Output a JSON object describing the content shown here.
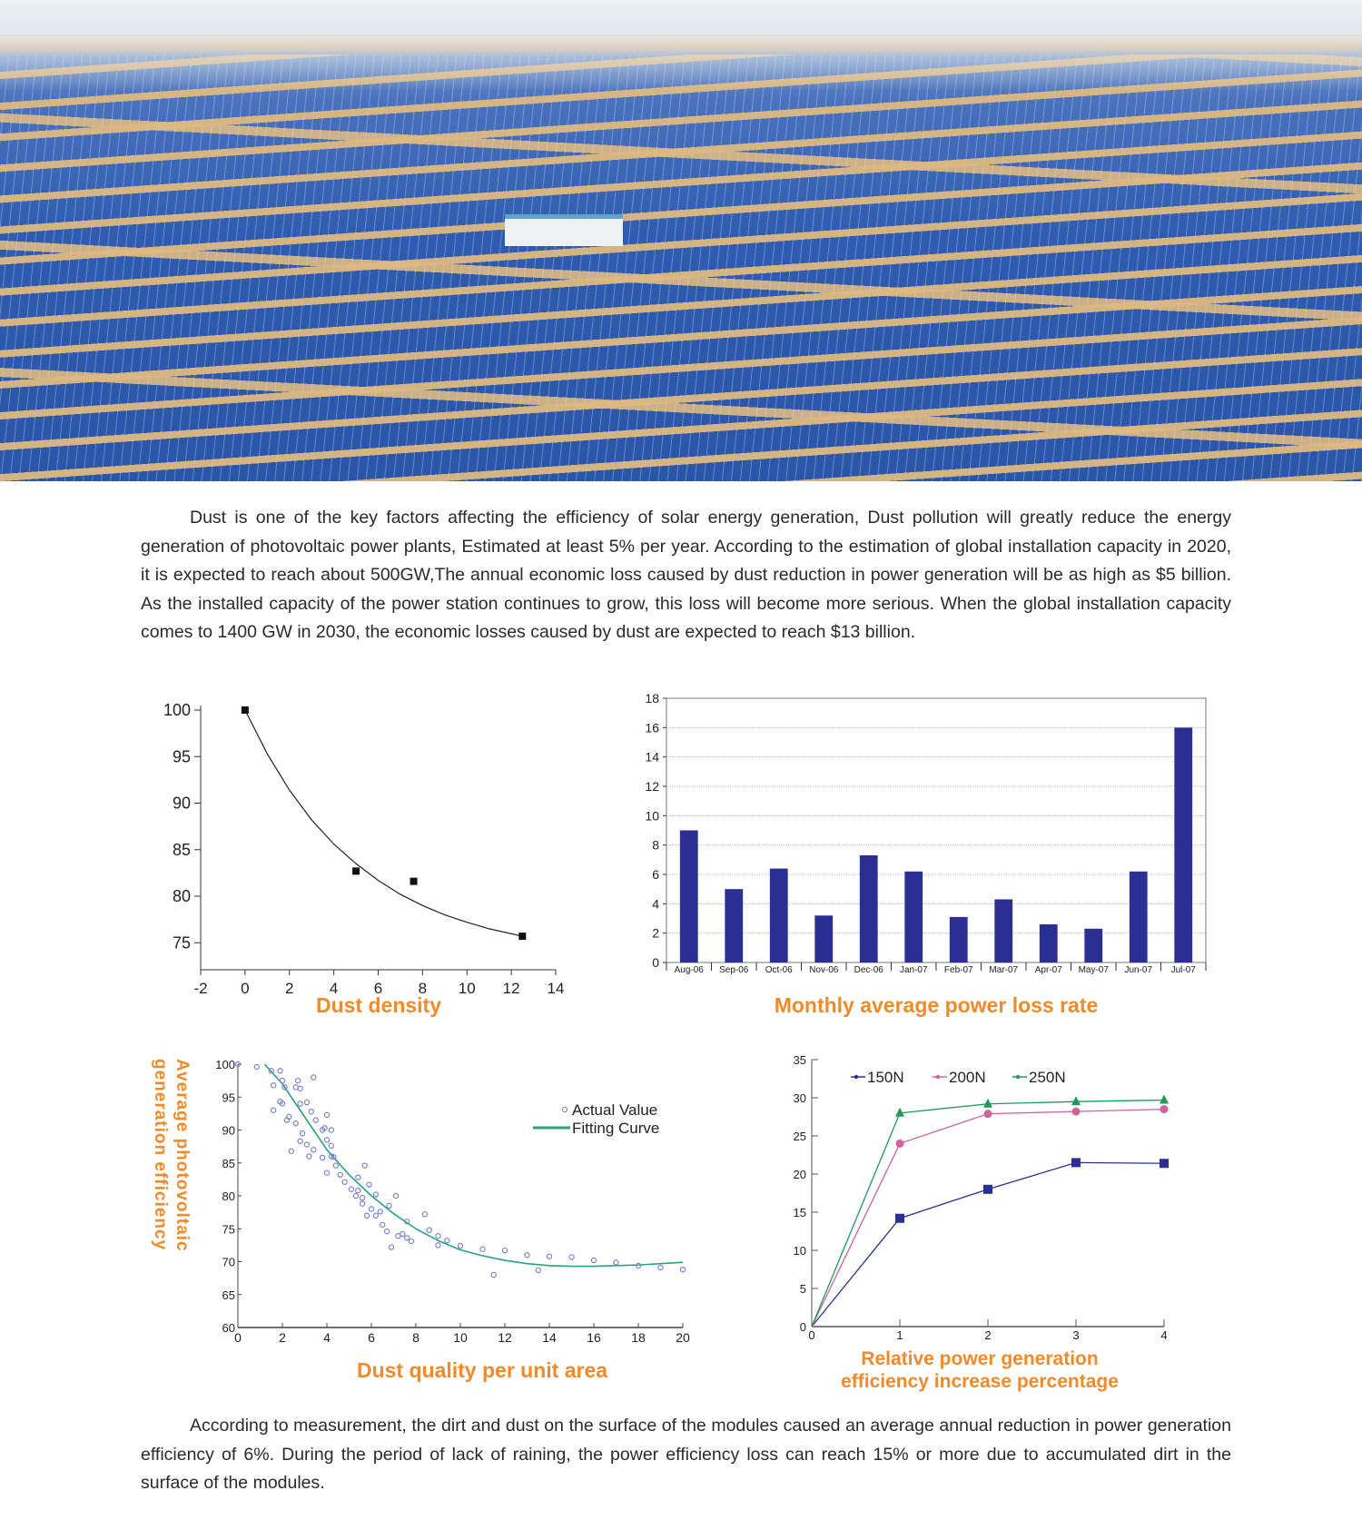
{
  "photo": {
    "alt_subject": "solar-farm-photo"
  },
  "intro_text": "Dust is one of the key factors affecting the efficiency of solar energy generation, Dust pollution will greatly reduce the energy generation of photovoltaic power plants, Estimated at least 5% per year. According to the estimation of global installation capacity in 2020, it is expected to reach about 500GW,The annual economic loss caused by dust reduction in power generation will be as high as $5 billion. As the installed capacity of the power station continues to grow, this loss will become more serious. When the global installation capacity comes to 1400 GW in 2030, the economic losses caused by dust are expected to reach $13 billion.",
  "closing_text": "According to measurement, the dirt and dust on the surface of the modules caused an average annual reduction in power generation efficiency of 6%. During the period of lack of raining, the power efficiency loss can reach 15% or more due to accumulated dirt in the surface of the modules.",
  "colors": {
    "title_orange": "#f08a2a",
    "bar_blue": "#2b2f93",
    "fit_green": "#2aa37a",
    "scatter_blue": "#7b83d6",
    "s150": "#2b2f93",
    "s200": "#d0649a",
    "s250": "#1f9a5a"
  },
  "chart_data": [
    {
      "type": "scatter",
      "title": "Dust density",
      "xlim": [
        -2,
        14
      ],
      "ylim": [
        72.1,
        100
      ],
      "xticks": [
        "-2",
        "0",
        "2",
        "4",
        "6",
        "8",
        "10",
        "12",
        "14"
      ],
      "yticks": [
        "75",
        "80",
        "85",
        "90",
        "95",
        "100"
      ],
      "points": [
        [
          0,
          100
        ],
        [
          5,
          82.7
        ],
        [
          7.6,
          81.6
        ],
        [
          12.5,
          75.7
        ]
      ],
      "fit": [
        [
          0,
          100
        ],
        [
          1,
          95.3
        ],
        [
          2,
          91.4
        ],
        [
          3,
          88.2
        ],
        [
          4,
          85.6
        ],
        [
          5,
          83.5
        ],
        [
          6,
          81.7
        ],
        [
          7,
          80.2
        ],
        [
          8,
          79.0
        ],
        [
          9,
          78.0
        ],
        [
          10,
          77.2
        ],
        [
          11,
          76.5
        ],
        [
          12.5,
          75.7
        ]
      ],
      "grid": false
    },
    {
      "type": "bar",
      "title": "Monthly average power loss rate",
      "categories": [
        "Aug-06",
        "Sep-06",
        "Oct-06",
        "Nov-06",
        "Dec-06",
        "Jan-07",
        "Feb-07",
        "Mar-07",
        "Apr-07",
        "May-07",
        "Jun-07",
        "Jul-07"
      ],
      "values": [
        9,
        5,
        6.4,
        3.2,
        7.3,
        6.2,
        3.1,
        4.3,
        2.6,
        2.3,
        6.2,
        16
      ],
      "ylim": [
        0,
        18
      ],
      "yticks": [
        "0",
        "2",
        "4",
        "6",
        "8",
        "10",
        "12",
        "14",
        "16",
        "18"
      ],
      "grid": true
    },
    {
      "type": "scatter",
      "title": "Dust quality per unit area",
      "ylabel": [
        "Average photovoltaic",
        "generation efficiency"
      ],
      "xlim": [
        0,
        20
      ],
      "ylim": [
        60,
        100
      ],
      "xticks": [
        "0",
        "2",
        "4",
        "6",
        "8",
        "10",
        "12",
        "14",
        "16",
        "18",
        "20"
      ],
      "yticks": [
        "60",
        "65",
        "70",
        "75",
        "80",
        "85",
        "90",
        "95",
        "100"
      ],
      "legend": {
        "placement": "top-right",
        "entries": [
          "Actual Value",
          "Fitting Curve"
        ]
      },
      "series": [
        {
          "name": "Actual Value",
          "points": [
            [
              0,
              100
            ],
            [
              0.85,
              99.6
            ],
            [
              1.5,
              99
            ],
            [
              1.6,
              96.8
            ],
            [
              1.6,
              93
            ],
            [
              1.9,
              94.3
            ],
            [
              2,
              94
            ],
            [
              1.9,
              99
            ],
            [
              2,
              97.5
            ],
            [
              2.1,
              96.5
            ],
            [
              2.2,
              91.5
            ],
            [
              2.3,
              92
            ],
            [
              2.4,
              86.8
            ],
            [
              2.6,
              96.5
            ],
            [
              2.6,
              91
            ],
            [
              2.7,
              97.5
            ],
            [
              2.8,
              96.3
            ],
            [
              2.8,
              94
            ],
            [
              2.9,
              89.5
            ],
            [
              2.8,
              88.3
            ],
            [
              3.1,
              94.2
            ],
            [
              3.1,
              87.8
            ],
            [
              3.2,
              86
            ],
            [
              3.3,
              92.8
            ],
            [
              3.4,
              98
            ],
            [
              3.4,
              87
            ],
            [
              3.5,
              91.5
            ],
            [
              3.8,
              85.8
            ],
            [
              3.8,
              90
            ],
            [
              3.9,
              90.3
            ],
            [
              4,
              92.3
            ],
            [
              4,
              88.5
            ],
            [
              4,
              83.5
            ],
            [
              4.2,
              90
            ],
            [
              4.2,
              87.6
            ],
            [
              4.2,
              86
            ],
            [
              4.3,
              85.9
            ],
            [
              4.4,
              84.6
            ],
            [
              4.6,
              83.2
            ],
            [
              4.8,
              82.1
            ],
            [
              5.1,
              81
            ],
            [
              5.3,
              80
            ],
            [
              5.4,
              80.8
            ],
            [
              5.4,
              82.8
            ],
            [
              5.6,
              78.8
            ],
            [
              5.6,
              79.7
            ],
            [
              5.7,
              84.6
            ],
            [
              5.8,
              77
            ],
            [
              5.9,
              81.7
            ],
            [
              6,
              78
            ],
            [
              6.2,
              80.2
            ],
            [
              6.2,
              77
            ],
            [
              6.4,
              77.6
            ],
            [
              6.5,
              75.6
            ],
            [
              6.7,
              74.6
            ],
            [
              6.8,
              78.5
            ],
            [
              6.9,
              72.2
            ],
            [
              7.1,
              80
            ],
            [
              7.2,
              73.9
            ],
            [
              7.4,
              74.2
            ],
            [
              7.6,
              73.6
            ],
            [
              7.6,
              76.1
            ],
            [
              7.8,
              73.1
            ],
            [
              8.4,
              77.2
            ],
            [
              8.6,
              74.8
            ],
            [
              9,
              73.9
            ],
            [
              9,
              72.5
            ],
            [
              9.4,
              73.2
            ],
            [
              10,
              72.4
            ],
            [
              11,
              71.9
            ],
            [
              11.5,
              68
            ],
            [
              12,
              71.7
            ],
            [
              13,
              71
            ],
            [
              13.5,
              68.7
            ],
            [
              14,
              70.8
            ],
            [
              15,
              70.7
            ],
            [
              16,
              70.2
            ],
            [
              17,
              69.9
            ],
            [
              18,
              69.4
            ],
            [
              19,
              69.1
            ],
            [
              20,
              68.8
            ]
          ]
        },
        {
          "name": "Fitting Curve",
          "points": [
            [
              1.2,
              100
            ],
            [
              2,
              97
            ],
            [
              3,
              92
            ],
            [
              4,
              87
            ],
            [
              5,
              83.2
            ],
            [
              6,
              80
            ],
            [
              7,
              77.3
            ],
            [
              8,
              75
            ],
            [
              9,
              73.2
            ],
            [
              10,
              71.8
            ],
            [
              11,
              70.9
            ],
            [
              12,
              70.2
            ],
            [
              13,
              69.7
            ],
            [
              14,
              69.4
            ],
            [
              15,
              69.3
            ],
            [
              16,
              69.3
            ],
            [
              17,
              69.4
            ],
            [
              18,
              69.5
            ],
            [
              19,
              69.7
            ],
            [
              20,
              69.9
            ]
          ]
        }
      ]
    },
    {
      "type": "line",
      "title": [
        "Relative power generation",
        "efficiency increase percentage"
      ],
      "xlim": [
        0,
        4
      ],
      "ylim": [
        0,
        35
      ],
      "xticks": [
        "0",
        "1",
        "2",
        "3",
        "4"
      ],
      "yticks": [
        "0",
        "5",
        "10",
        "15",
        "20",
        "25",
        "30",
        "35"
      ],
      "legend": {
        "placement": "top"
      },
      "x": [
        0,
        1,
        2,
        3,
        4
      ],
      "series": [
        {
          "name": "150N",
          "values": [
            0,
            14.2,
            18,
            21.5,
            21.4
          ],
          "marker": "square"
        },
        {
          "name": "200N",
          "values": [
            0,
            24,
            27.9,
            28.2,
            28.5
          ],
          "marker": "circle"
        },
        {
          "name": "250N",
          "values": [
            0,
            28,
            29.2,
            29.5,
            29.7
          ],
          "marker": "triangle"
        }
      ]
    }
  ]
}
